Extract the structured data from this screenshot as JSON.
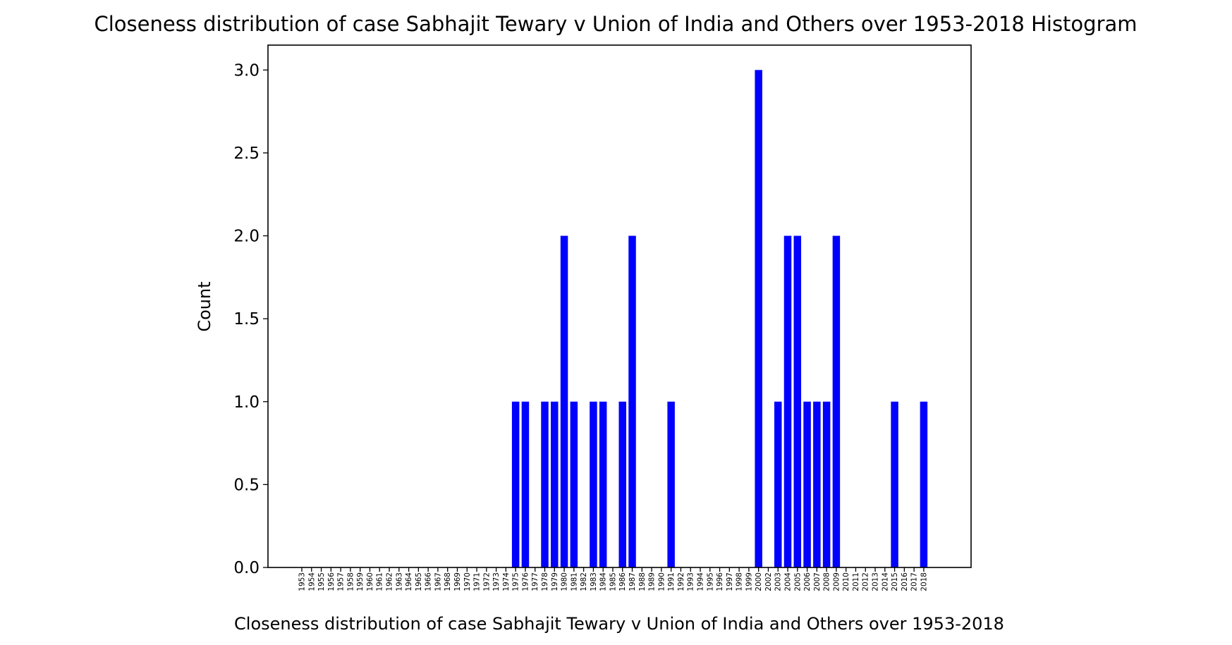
{
  "chart_data": {
    "type": "bar",
    "title": "Closeness distribution of case Sabhajit Tewary v Union of India and Others over 1953-2018 Histogram",
    "xlabel": "Closeness distribution of case Sabhajit Tewary v Union of India and Others over 1953-2018",
    "ylabel": "Count",
    "ylim": [
      0,
      3.15
    ],
    "yticks": [
      "0.0",
      "0.5",
      "1.0",
      "1.5",
      "2.0",
      "2.5",
      "3.0"
    ],
    "ytick_values": [
      0,
      0.5,
      1.0,
      1.5,
      2.0,
      2.5,
      3.0
    ],
    "bar_color": "#0000ff",
    "grid": false,
    "categories": [
      "1953",
      "1954",
      "1955",
      "1956",
      "1957",
      "1958",
      "1959",
      "1960",
      "1961",
      "1962",
      "1963",
      "1964",
      "1965",
      "1966",
      "1967",
      "1968",
      "1969",
      "1970",
      "1971",
      "1972",
      "1973",
      "1974",
      "1975",
      "1976",
      "1977",
      "1978",
      "1979",
      "1980",
      "1981",
      "1982",
      "1983",
      "1984",
      "1985",
      "1986",
      "1987",
      "1988",
      "1989",
      "1990",
      "1991",
      "1992",
      "1993",
      "1994",
      "1995",
      "1996",
      "1997",
      "1998",
      "1999",
      "2000",
      "2002",
      "2003",
      "2004",
      "2005",
      "2006",
      "2007",
      "2008",
      "2009",
      "2010",
      "2011",
      "2012",
      "2013",
      "2014",
      "2015",
      "2016",
      "2017",
      "2018"
    ],
    "values": [
      0,
      0,
      0,
      0,
      0,
      0,
      0,
      0,
      0,
      0,
      0,
      0,
      0,
      0,
      0,
      0,
      0,
      0,
      0,
      0,
      0,
      0,
      1,
      1,
      0,
      1,
      1,
      2,
      1,
      0,
      1,
      1,
      0,
      1,
      2,
      0,
      0,
      0,
      1,
      0,
      0,
      0,
      0,
      0,
      0,
      0,
      0,
      3,
      0,
      1,
      2,
      2,
      1,
      1,
      1,
      2,
      0,
      0,
      0,
      0,
      0,
      1,
      0,
      0,
      1
    ]
  }
}
